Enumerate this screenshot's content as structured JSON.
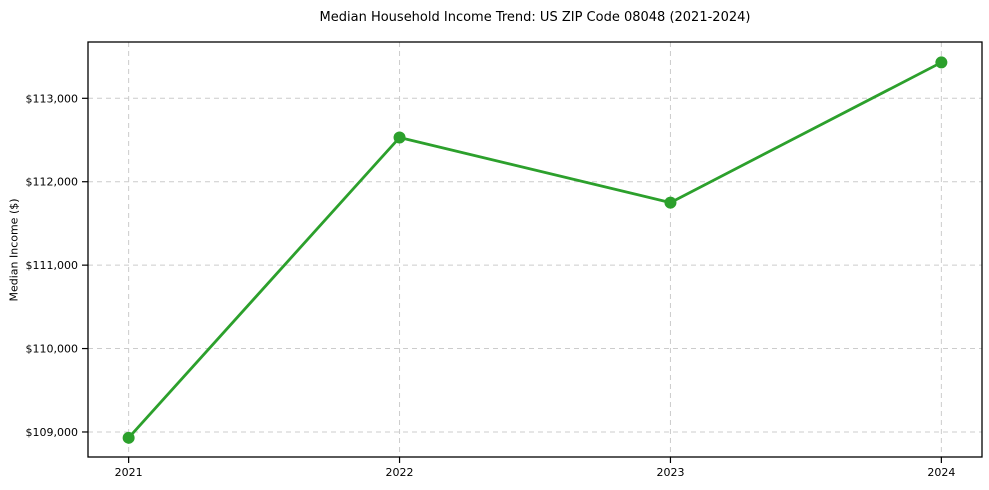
{
  "figure": {
    "background": "#ffffff",
    "frame_color": "#000000",
    "grid_color": "#cccccc",
    "text_color": "#000000"
  },
  "chart_data": {
    "type": "line",
    "title": "Median Household Income Trend: US ZIP Code 08048 (2021-2024)",
    "xlabel": "",
    "ylabel": "Median Income ($)",
    "x": [
      2021,
      2022,
      2023,
      2024
    ],
    "series": [
      {
        "name": "Median Household Income",
        "values": [
          108930,
          112530,
          111750,
          113430
        ],
        "color": "#2ca02c",
        "marker": "circle",
        "line_width": 2.8,
        "marker_radius": 6
      }
    ],
    "x_ticks": [
      2021,
      2022,
      2023,
      2024
    ],
    "x_tick_labels": [
      "2021",
      "2022",
      "2023",
      "2024"
    ],
    "y_ticks": [
      109000,
      110000,
      111000,
      112000,
      113000
    ],
    "y_tick_labels": [
      "$109,000",
      "$110,000",
      "$111,000",
      "$112,000",
      "$113,000"
    ],
    "xlim": [
      2020.85,
      2024.15
    ],
    "ylim": [
      108700,
      113675
    ],
    "grid": true,
    "grid_style": "dashed",
    "legend": false
  }
}
